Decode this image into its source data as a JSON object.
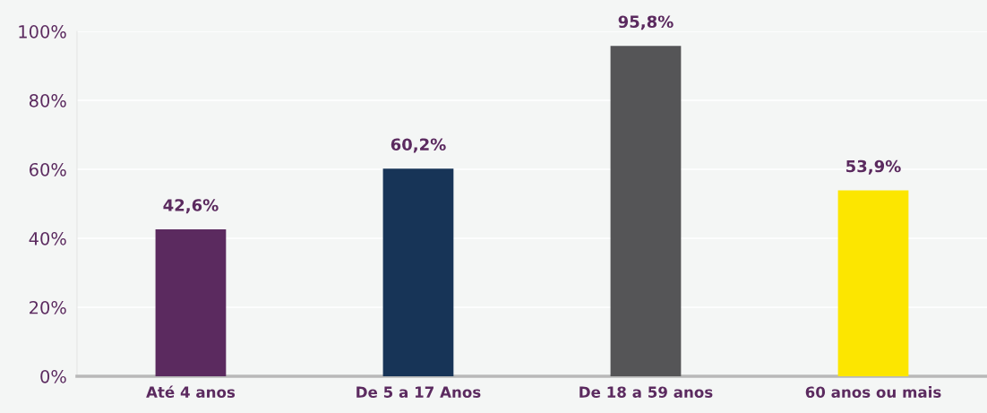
{
  "chart_data": {
    "type": "bar",
    "categories": [
      "Até 4 anos",
      "De 5 a 17 Anos",
      "De 18 a 59 anos",
      "60 anos ou mais"
    ],
    "values": [
      42.6,
      60.2,
      95.8,
      53.9
    ],
    "colors": [
      "#5b2a5f",
      "#173457",
      "#555557",
      "#fce600"
    ],
    "value_labels": [
      "42,6%",
      "60,2%",
      "95,8%",
      "53,9%"
    ],
    "ylim": [
      0,
      100
    ],
    "yticks": [
      {
        "value": 0,
        "label": "0%"
      },
      {
        "value": 20,
        "label": "20%"
      },
      {
        "value": 40,
        "label": "40%"
      },
      {
        "value": 60,
        "label": "60%"
      },
      {
        "value": 80,
        "label": "80%"
      },
      {
        "value": 100,
        "label": "100%"
      }
    ],
    "grid": "y",
    "legend": false
  }
}
